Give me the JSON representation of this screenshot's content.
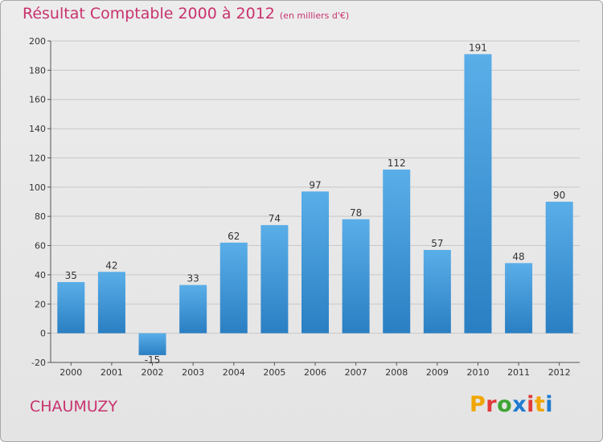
{
  "page": {
    "title": "Résultat Comptable 2000 à 2012",
    "subtitle": "(en milliers d'€)",
    "commune": "CHAUMUZY",
    "logo_text": "Proxiti"
  },
  "colors": {
    "title": "#c8326e",
    "bar_light": "#5aaee8",
    "bar_dark": "#2a7fc3",
    "grid": "#c8c8c8",
    "axis_text": "#333333",
    "logo_letters": [
      "#f0a500",
      "#e03a3a",
      "#3fa535",
      "#1f7bd0",
      "#e03a3a",
      "#f0a500",
      "#1f7bd0"
    ]
  },
  "chart_data": {
    "type": "bar",
    "title": "Résultat Comptable 2000 à 2012",
    "ylabel": "en milliers d'€",
    "xlabel": "",
    "ylim": [
      -20,
      200
    ],
    "yticks": [
      -20,
      0,
      20,
      40,
      60,
      80,
      100,
      120,
      140,
      160,
      180,
      200
    ],
    "grid": true,
    "categories": [
      "2000",
      "2001",
      "2002",
      "2003",
      "2004",
      "2005",
      "2006",
      "2007",
      "2008",
      "2009",
      "2010",
      "2011",
      "2012"
    ],
    "values": [
      35,
      42,
      -15,
      33,
      62,
      74,
      97,
      78,
      112,
      57,
      191,
      48,
      90
    ]
  }
}
